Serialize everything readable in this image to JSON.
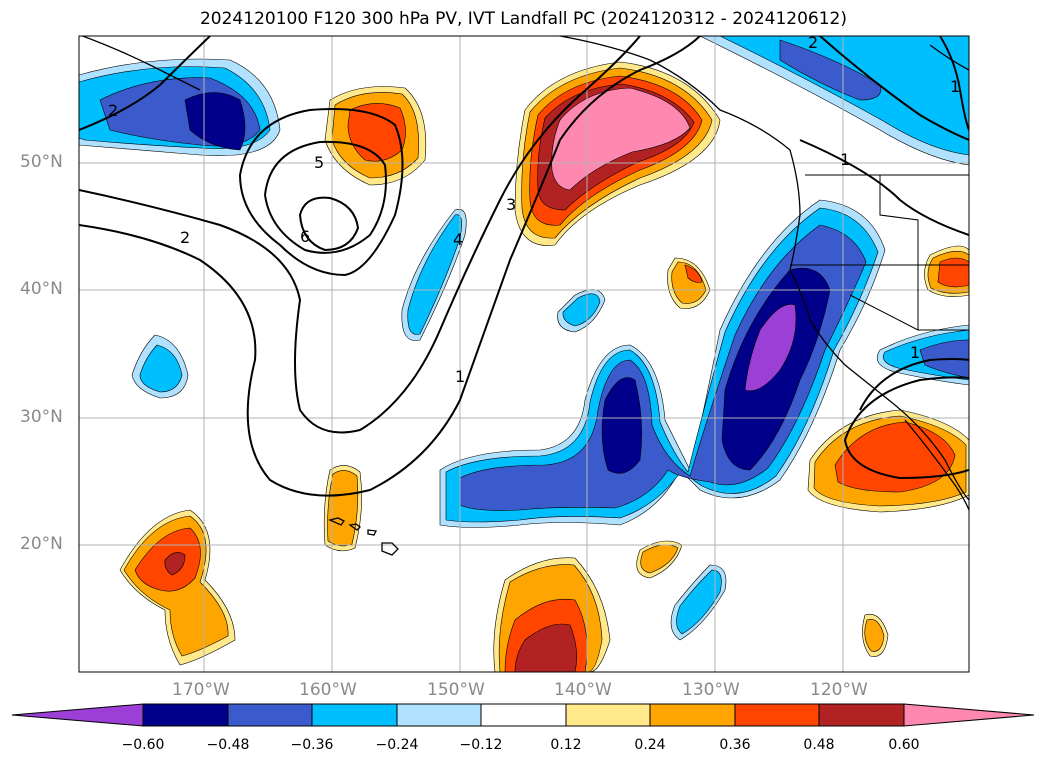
{
  "title": "2024120100 F120 300 hPa PV, IVT Landfall PC (2024120312 - 2024120612)",
  "map": {
    "lon_labels": [
      "170°W",
      "160°W",
      "150°W",
      "140°W",
      "130°W",
      "120°W"
    ],
    "lat_labels": [
      "50°N",
      "40°N",
      "30°N",
      "20°N"
    ],
    "contour_labels": [
      "2",
      "5",
      "6",
      "2",
      "3",
      "4",
      "1",
      "1",
      "2",
      "1",
      "1"
    ]
  },
  "colorbar": {
    "ticks": [
      "−0.60",
      "−0.48",
      "−0.36",
      "−0.24",
      "−0.12",
      "0.12",
      "0.24",
      "0.36",
      "0.48",
      "0.60"
    ],
    "colors": {
      "lt_m060": "#9b3fd6",
      "m060_m048": "#00008b",
      "m048_m036": "#3b5bcc",
      "m036_m024": "#00bfff",
      "m024_m012": "#b0e2ff",
      "m012_012": "#ffffff",
      "p012_024": "#ffe98a",
      "p024_036": "#ffa500",
      "p036_048": "#ff4500",
      "p048_060": "#b22222",
      "gt_060": "#ff88b0"
    }
  }
}
